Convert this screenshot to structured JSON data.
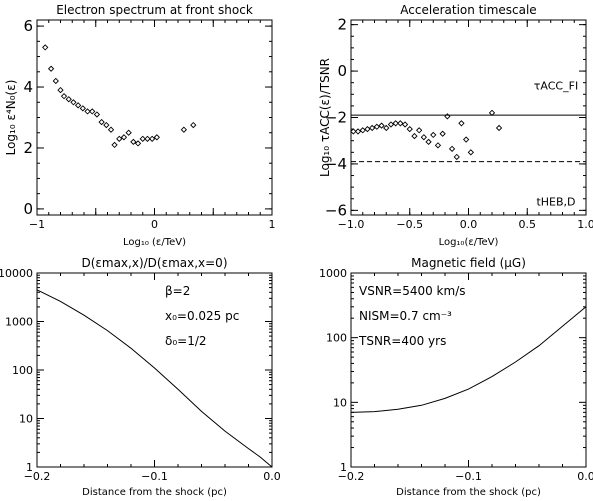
{
  "colors": {
    "ink": "#000000",
    "background": "#ffffff"
  },
  "chart_data": [
    {
      "id": "p1",
      "type": "scatter",
      "title": "Electron spectrum at front shock",
      "xlabel": "Log₁₀ (ε/TeV)",
      "ylabel": "Log₁₀ ε⁴N₀(ε)",
      "xlim": [
        -1,
        1
      ],
      "ylim": [
        -0.2,
        6.2
      ],
      "xticks": [
        -1,
        -0.5,
        0,
        0.5,
        1
      ],
      "xtick_labels": [
        "−1",
        "",
        "0",
        "",
        "1"
      ],
      "yticks": [
        0,
        2,
        4,
        6
      ],
      "ytick_labels": [
        "0",
        "2",
        "4",
        "6"
      ],
      "marker": "diamond",
      "x": [
        -0.93,
        -0.88,
        -0.84,
        -0.8,
        -0.77,
        -0.73,
        -0.69,
        -0.65,
        -0.61,
        -0.57,
        -0.53,
        -0.49,
        -0.45,
        -0.41,
        -0.37,
        -0.34,
        -0.3,
        -0.26,
        -0.22,
        -0.18,
        -0.14,
        -0.1,
        -0.06,
        -0.02,
        0.02,
        0.25,
        0.33
      ],
      "y": [
        5.3,
        4.6,
        4.2,
        3.9,
        3.7,
        3.6,
        3.5,
        3.4,
        3.3,
        3.2,
        3.2,
        3.1,
        2.85,
        2.75,
        2.6,
        2.1,
        2.3,
        2.35,
        2.5,
        2.2,
        2.15,
        2.3,
        2.3,
        2.3,
        2.35,
        2.6,
        2.75
      ]
    },
    {
      "id": "p2",
      "type": "scatter",
      "title": "Acceleration timescale",
      "xlabel": "Log₁₀(ε/TeV)",
      "ylabel": "Log₁₀ τACC(ε)/TSNR",
      "xlim": [
        -1,
        1
      ],
      "ylim": [
        -6.2,
        2.2
      ],
      "xticks": [
        -1,
        -0.5,
        0,
        0.5,
        1
      ],
      "xtick_labels": [
        "−1.0",
        "−0.5",
        "0.0",
        "0.5",
        "1.0"
      ],
      "yticks": [
        -6,
        -4,
        -2,
        0,
        2
      ],
      "ytick_labels": [
        "−6",
        "−4",
        "−2",
        "0",
        "2"
      ],
      "marker": "diamond",
      "x": [
        -0.98,
        -0.94,
        -0.9,
        -0.86,
        -0.82,
        -0.78,
        -0.74,
        -0.7,
        -0.66,
        -0.62,
        -0.58,
        -0.54,
        -0.5,
        -0.46,
        -0.42,
        -0.38,
        -0.34,
        -0.3,
        -0.26,
        -0.22,
        -0.18,
        -0.14,
        -0.1,
        -0.06,
        -0.02,
        0.02,
        0.2,
        0.26
      ],
      "y": [
        -2.6,
        -2.6,
        -2.55,
        -2.5,
        -2.45,
        -2.4,
        -2.35,
        -2.45,
        -2.3,
        -2.25,
        -2.25,
        -2.3,
        -2.5,
        -2.8,
        -2.55,
        -2.85,
        -3.05,
        -2.75,
        -3.2,
        -2.7,
        -1.95,
        -3.35,
        -3.7,
        -2.25,
        -2.95,
        -3.5,
        -1.8,
        -2.45
      ],
      "hlines": [
        {
          "y": -1.9,
          "style": "solid",
          "label": "τACC_FI"
        },
        {
          "y": -3.9,
          "style": "dashed",
          "label": "tHEB,D"
        }
      ]
    },
    {
      "id": "p3",
      "type": "line",
      "title": "D(εmax,x)/D(εmax,x=0)",
      "xlabel": "Distance from the shock (pc)",
      "ylabel": "",
      "xlim": [
        -0.2,
        0
      ],
      "ylog": true,
      "ylim": [
        1,
        10000
      ],
      "xticks": [
        -0.2,
        -0.1,
        0
      ],
      "xtick_labels": [
        "−0.2",
        "−0.1",
        "0.0"
      ],
      "yticks": [
        1,
        10,
        100,
        1000,
        10000
      ],
      "ytick_labels": [
        "1",
        "10",
        "100",
        "1000",
        "10000"
      ],
      "annotations": [
        "β=2",
        "x₀=0.025 pc",
        "δ₀=1/2"
      ],
      "x": [
        -0.2,
        -0.18,
        -0.16,
        -0.14,
        -0.12,
        -0.1,
        -0.08,
        -0.06,
        -0.04,
        -0.02,
        -0.01,
        0.0
      ],
      "y": [
        4500,
        2600,
        1350,
        650,
        280,
        110,
        40,
        14,
        5.5,
        2.4,
        1.6,
        1.0
      ]
    },
    {
      "id": "p4",
      "type": "line",
      "title": "Magnetic field (μG)",
      "xlabel": "Distance from the shock (pc)",
      "ylabel": "",
      "xlim": [
        -0.2,
        0
      ],
      "ylog": true,
      "ylim": [
        1,
        1000
      ],
      "xticks": [
        -0.2,
        -0.1,
        0
      ],
      "xtick_labels": [
        "−0.2",
        "−0.1",
        "0.0"
      ],
      "yticks": [
        1,
        10,
        100,
        1000
      ],
      "ytick_labels": [
        "1",
        "10",
        "100",
        "1000"
      ],
      "annotations": [
        "VSNR=5400 km/s",
        "NISM=0.7 cm⁻³",
        "TSNR=400 yrs"
      ],
      "x": [
        -0.2,
        -0.18,
        -0.16,
        -0.14,
        -0.12,
        -0.1,
        -0.08,
        -0.06,
        -0.04,
        -0.02,
        0.0
      ],
      "y": [
        7.0,
        7.2,
        7.8,
        9.0,
        11.5,
        16,
        25,
        42,
        75,
        150,
        300
      ]
    }
  ]
}
